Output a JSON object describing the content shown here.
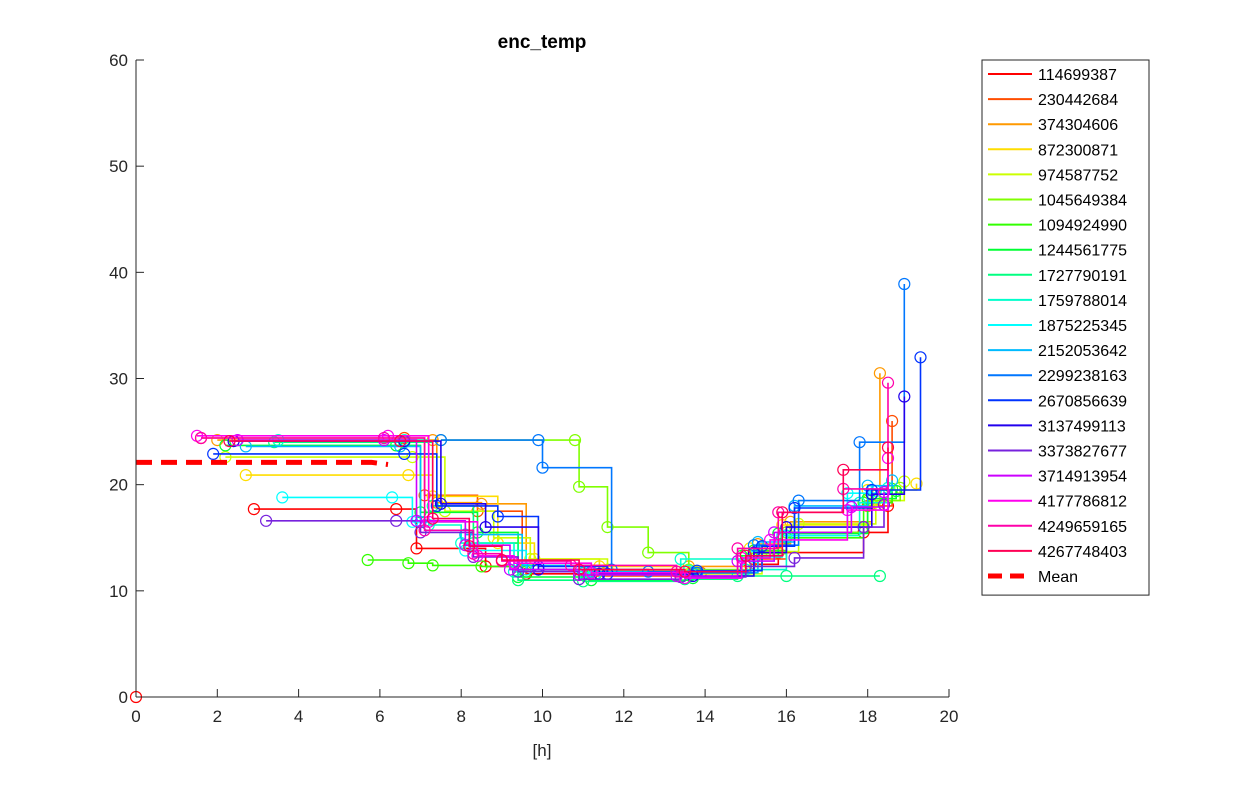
{
  "chart_data": {
    "type": "line",
    "title": "enc_temp",
    "xlabel": "[h]",
    "ylabel": "",
    "xlim": [
      0,
      20
    ],
    "ylim": [
      0,
      60
    ],
    "xticks": [
      "0",
      "2",
      "4",
      "6",
      "8",
      "10",
      "12",
      "14",
      "16",
      "18",
      "20"
    ],
    "yticks": [
      "0",
      "10",
      "20",
      "30",
      "40",
      "50",
      "60"
    ],
    "grid": false,
    "legend_position": "outside-right",
    "series": [
      {
        "name": "114699387",
        "color": "#ff0000",
        "x": [
          2.9,
          6.4,
          6.9,
          8.6,
          9.6,
          11.2,
          13.7,
          15.1,
          15.8,
          17.9,
          18.5
        ],
        "y": [
          17.7,
          17.7,
          14.0,
          12.3,
          11.6,
          11.5,
          11.6,
          12.5,
          13.6,
          15.5,
          18.0
        ]
      },
      {
        "name": "230442684",
        "color": "#ff4d00",
        "x": [
          1.6,
          6.6,
          7.1,
          8.4,
          9.5,
          11.1,
          13.9,
          15.2,
          16.0,
          18.0,
          18.6
        ],
        "y": [
          24.4,
          24.4,
          19.0,
          17.5,
          12.0,
          11.4,
          11.7,
          13.0,
          15.5,
          18.0,
          26.0
        ]
      },
      {
        "name": "374304606",
        "color": "#ff9900",
        "x": [
          2.0,
          7.3,
          7.4,
          8.5,
          9.6,
          11.5,
          13.6,
          15.3,
          16.1,
          18.1,
          18.3
        ],
        "y": [
          24.2,
          24.2,
          18.3,
          18.2,
          12.4,
          11.9,
          12.3,
          14.4,
          16.5,
          18.2,
          30.5
        ]
      },
      {
        "name": "872300871",
        "color": "#ffdd00",
        "x": [
          2.7,
          6.7,
          7.3,
          8.9,
          9.8,
          11.4,
          13.8,
          15.1,
          15.9,
          18.0,
          19.2
        ],
        "y": [
          20.9,
          20.9,
          18.9,
          14.5,
          13.0,
          12.3,
          11.8,
          14.0,
          16.2,
          19.5,
          20.1
        ]
      },
      {
        "name": "974587752",
        "color": "#ccff00",
        "x": [
          2.2,
          6.8,
          7.6,
          8.8,
          9.7,
          11.6,
          13.6,
          15.4,
          16.3,
          18.2,
          18.9
        ],
        "y": [
          22.6,
          22.6,
          17.5,
          15.0,
          13.0,
          12.0,
          11.6,
          13.7,
          16.3,
          18.5,
          20.3
        ]
      },
      {
        "name": "1045649384",
        "color": "#80ff00",
        "x": [
          7.5,
          10.8,
          10.9,
          11.6,
          12.6,
          13.6,
          15.0,
          16.0,
          18.0,
          18.8
        ],
        "y": [
          24.2,
          24.2,
          19.8,
          16.0,
          13.6,
          12.0,
          13.5,
          15.5,
          18.5,
          19.7
        ]
      },
      {
        "name": "1094924990",
        "color": "#33ff00",
        "x": [
          5.7,
          6.7,
          7.3,
          8.5,
          9.6,
          11.3,
          13.8,
          15.2,
          16.0,
          17.9,
          18.6
        ],
        "y": [
          12.9,
          12.6,
          12.4,
          12.3,
          11.8,
          11.5,
          11.7,
          13.8,
          15.0,
          18.3,
          19.6
        ]
      },
      {
        "name": "1244561775",
        "color": "#00ff33",
        "x": [
          2.2,
          6.4,
          7.0,
          8.4,
          9.4,
          11.2,
          13.7,
          14.9,
          15.8,
          18.0,
          18.7
        ],
        "y": [
          23.7,
          23.7,
          17.4,
          15.5,
          11.3,
          11.0,
          11.2,
          13.3,
          15.4,
          18.7,
          19.4
        ]
      },
      {
        "name": "1727790191",
        "color": "#00ff80",
        "x": [
          3.4,
          6.6,
          7.3,
          8.3,
          9.4,
          11.0,
          13.5,
          14.8,
          16.0,
          18.3
        ],
        "y": [
          24.0,
          24.0,
          18.0,
          14.5,
          11.0,
          10.9,
          11.1,
          11.4,
          11.4,
          11.4
        ]
      },
      {
        "name": "1759788014",
        "color": "#00ffcc",
        "x": [
          3.5,
          6.6,
          7.2,
          8.0,
          9.3,
          11.0,
          13.4,
          15.0,
          16.0,
          17.8,
          18.5
        ],
        "y": [
          24.2,
          24.2,
          16.2,
          14.5,
          11.8,
          11.7,
          13.0,
          12.0,
          15.2,
          18.3,
          19.7
        ]
      },
      {
        "name": "1875225345",
        "color": "#00ffff",
        "x": [
          3.6,
          6.3,
          6.8,
          8.1,
          9.6,
          11.3,
          13.6,
          15.2,
          15.9,
          17.5,
          18.2
        ],
        "y": [
          18.8,
          18.8,
          16.5,
          13.8,
          12.0,
          11.6,
          11.9,
          13.2,
          15.2,
          19.2,
          19.4
        ]
      },
      {
        "name": "2152053642",
        "color": "#00bbff",
        "x": [
          2.7,
          6.5,
          7.0,
          8.1,
          9.5,
          11.2,
          13.7,
          15.3,
          16.2,
          18.0,
          18.6
        ],
        "y": [
          23.6,
          23.6,
          16.5,
          15.3,
          12.4,
          11.8,
          11.7,
          14.6,
          18.0,
          19.9,
          20.4
        ]
      },
      {
        "name": "2299238163",
        "color": "#0077ff",
        "x": [
          7.5,
          9.9,
          10.0,
          11.7,
          12.6,
          13.8,
          15.2,
          16.3,
          17.8,
          18.9
        ],
        "y": [
          24.2,
          24.2,
          21.6,
          12.0,
          11.8,
          11.7,
          14.3,
          18.5,
          24.0,
          38.9
        ]
      },
      {
        "name": "2670856639",
        "color": "#0033ff",
        "x": [
          1.9,
          6.6,
          7.4,
          8.9,
          9.9,
          11.6,
          13.8,
          15.4,
          16.2,
          18.1,
          19.3
        ],
        "y": [
          22.9,
          22.9,
          18.0,
          17.0,
          12.3,
          11.6,
          11.9,
          14.2,
          17.8,
          19.5,
          32.0
        ]
      },
      {
        "name": "3137499113",
        "color": "#2200ee",
        "x": [
          2.4,
          6.6,
          7.5,
          8.6,
          9.9,
          11.4,
          13.7,
          15.2,
          16.0,
          18.1,
          18.9
        ],
        "y": [
          24.1,
          24.1,
          18.2,
          16.0,
          12.0,
          11.6,
          11.4,
          13.6,
          16.0,
          19.1,
          28.3
        ]
      },
      {
        "name": "3373827677",
        "color": "#7722dd",
        "x": [
          3.2,
          6.4,
          7.0,
          8.3,
          9.4,
          10.9,
          13.4,
          15.0,
          16.2,
          17.9,
          18.4
        ],
        "y": [
          16.6,
          16.6,
          15.5,
          13.2,
          11.8,
          11.1,
          11.3,
          12.3,
          13.1,
          16.0,
          18.1
        ]
      },
      {
        "name": "3714913954",
        "color": "#cc00ff",
        "x": [
          2.5,
          6.1,
          6.9,
          8.1,
          9.2,
          10.9,
          13.3,
          14.8,
          15.7,
          17.6,
          18.4
        ],
        "y": [
          24.2,
          24.2,
          16.6,
          14.3,
          12.0,
          11.5,
          11.4,
          12.8,
          15.5,
          17.9,
          19.3
        ]
      },
      {
        "name": "4177786812",
        "color": "#ff00ee",
        "x": [
          1.5,
          6.2,
          7.2,
          8.4,
          9.3,
          11.2,
          13.5,
          14.9,
          15.6,
          17.5,
          18.5
        ],
        "y": [
          24.6,
          24.6,
          16.5,
          13.3,
          12.6,
          11.7,
          11.2,
          13.1,
          14.8,
          17.6,
          22.5
        ]
      },
      {
        "name": "4249659165",
        "color": "#ff00aa",
        "x": [
          1.6,
          6.1,
          7.1,
          8.3,
          9.0,
          10.7,
          13.3,
          14.8,
          15.8,
          17.4,
          18.5
        ],
        "y": [
          24.4,
          24.4,
          15.7,
          13.5,
          12.8,
          12.4,
          11.8,
          14.0,
          17.4,
          19.6,
          29.6
        ]
      },
      {
        "name": "4267748403",
        "color": "#ff0055",
        "x": [
          2.3,
          6.5,
          7.3,
          8.2,
          9.0,
          10.9,
          13.5,
          15.0,
          15.9,
          17.4,
          18.5
        ],
        "y": [
          24.1,
          24.1,
          16.8,
          14.2,
          12.9,
          12.0,
          11.8,
          13.3,
          17.4,
          21.4,
          23.5
        ]
      },
      {
        "name": "Mean",
        "color": "#ff0000",
        "style": "dashed",
        "x": [
          0,
          5.8,
          6.2
        ],
        "y": [
          22.1,
          22.1,
          21.9
        ]
      }
    ]
  }
}
